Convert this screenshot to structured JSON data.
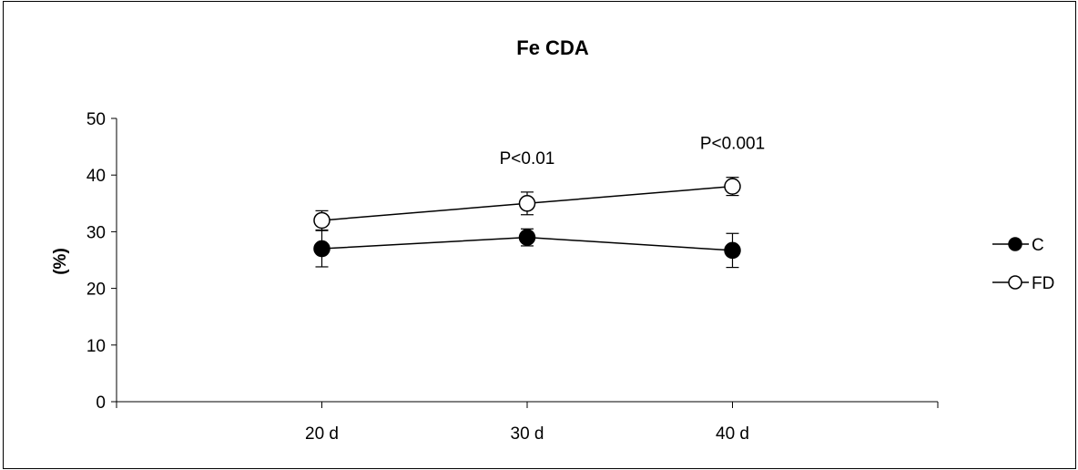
{
  "chart_data": {
    "type": "line",
    "title": "Fe CDA",
    "xlabel": "",
    "ylabel": "(%)",
    "categories": [
      "20 d",
      "30 d",
      "40 d"
    ],
    "ylim": [
      0,
      50
    ],
    "yticks": [
      0,
      10,
      20,
      30,
      40,
      50
    ],
    "grid": false,
    "legend_position": "right",
    "series": [
      {
        "name": "C",
        "marker": "filled-circle",
        "color": "#000000",
        "values": [
          27,
          29,
          26.7
        ],
        "error": [
          3.2,
          1.5,
          3.0
        ]
      },
      {
        "name": "FD",
        "marker": "open-circle",
        "color": "#000000",
        "values": [
          32,
          35,
          38
        ],
        "error": [
          1.7,
          2.0,
          1.6
        ]
      }
    ],
    "annotations": [
      {
        "category": "30 d",
        "text": "P<0.01"
      },
      {
        "category": "40 d",
        "text": "P<0.001"
      }
    ]
  }
}
